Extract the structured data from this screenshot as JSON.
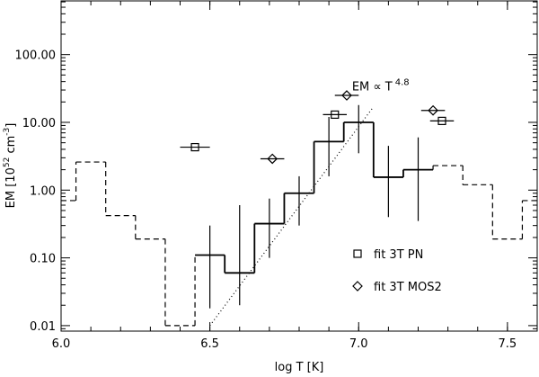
{
  "chart_data": {
    "type": "step",
    "xlabel": "log T [K]",
    "ylabel": [
      "EM [10",
      "52",
      " cm",
      "-3",
      "]"
    ],
    "xlim": [
      6.0,
      7.6
    ],
    "ylim": [
      0.0083,
      620
    ],
    "log_y": true,
    "xticks": [
      {
        "value": 6.0,
        "label": "6.0"
      },
      6.5,
      {
        "value": 7.0,
        "label": "7.0"
      },
      7.5
    ],
    "yticks": [
      0.01,
      {
        "value": 0.1,
        "label": "0.10"
      },
      {
        "value": 1,
        "label": "1.00"
      },
      {
        "value": 10,
        "label": "10.00"
      },
      {
        "value": 100,
        "label": "100.00"
      }
    ],
    "dem_low": {
      "edges": [
        6.0,
        6.05,
        6.15,
        6.25,
        6.35,
        6.45
      ],
      "values": [
        0.7,
        2.6,
        0.42,
        0.19,
        0.01
      ]
    },
    "dem": {
      "edges": [
        6.45,
        6.55,
        6.65,
        6.75,
        6.85,
        6.95,
        7.05,
        7.15,
        7.25
      ],
      "values": [
        0.11,
        0.06,
        0.32,
        0.9,
        5.2,
        10,
        1.55,
        2.0
      ],
      "err_low": [
        0.018,
        0.02,
        0.1,
        0.3,
        1.6,
        3.5,
        0.4,
        0.35
      ],
      "err_high": [
        0.3,
        0.6,
        0.75,
        1.6,
        12,
        18,
        4.5,
        6
      ]
    },
    "dem_high": {
      "edges": [
        7.25,
        7.35,
        7.45,
        7.55,
        7.6
      ],
      "values": [
        2.3,
        1.2,
        0.19,
        0.7
      ]
    },
    "fit": {
      "x": [
        6.5,
        7.05
      ],
      "y": [
        0.01,
        17
      ],
      "label": "EM ∝ T",
      "exponent": "4.8"
    },
    "series": [
      {
        "name": "fit 3T PN",
        "marker": "square",
        "color": "#000000",
        "x": [
          6.45,
          6.92,
          7.28
        ],
        "values": [
          4.3,
          13,
          10.5
        ],
        "xerr": [
          0.05,
          0.04,
          0.04
        ]
      },
      {
        "name": "fit 3T MOS2",
        "marker": "diamond",
        "color": "#000000",
        "x": [
          6.71,
          6.96,
          7.25
        ],
        "values": [
          2.9,
          25,
          15
        ],
        "xerr": [
          0.04,
          0.04,
          0.04
        ]
      }
    ],
    "legend": "lower right"
  }
}
